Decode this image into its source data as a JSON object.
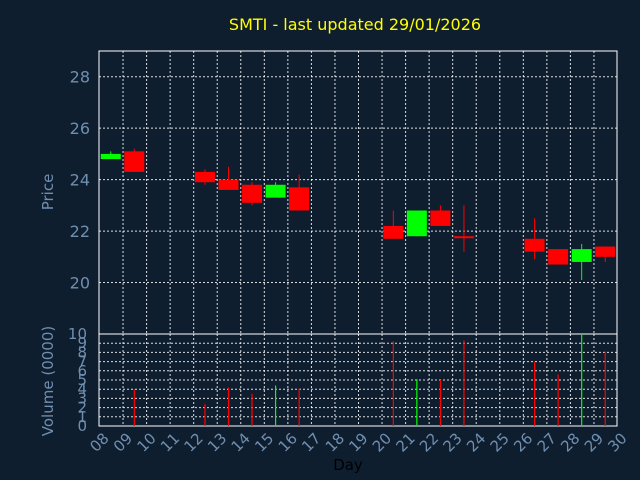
{
  "chart_data": [
    {
      "type": "candlestick",
      "title": "SMTI - last updated 29/01/2026",
      "ylabel": "Price",
      "ylim": [
        18,
        29
      ],
      "yticks": [
        20,
        22,
        24,
        26,
        28
      ],
      "grid": true,
      "colors": {
        "up": "#00ff00",
        "down": "#ff0000",
        "title": "#ffff00",
        "axis_text": "#6f8fb0",
        "background": "#0f1e2f"
      },
      "categories": [
        "08",
        "09",
        "10",
        "11",
        "12",
        "13",
        "14",
        "15",
        "16",
        "17",
        "18",
        "19",
        "20",
        "21",
        "22",
        "23",
        "24",
        "25",
        "26",
        "27",
        "28",
        "29",
        "30"
      ],
      "candles": [
        {
          "day": "08",
          "open": 24.8,
          "high": 25.1,
          "low": 24.8,
          "close": 25.0
        },
        {
          "day": "09",
          "open": 25.1,
          "high": 25.2,
          "low": 24.3,
          "close": 24.3
        },
        {
          "day": "12",
          "open": 24.3,
          "high": 24.4,
          "low": 23.8,
          "close": 23.9
        },
        {
          "day": "13",
          "open": 24.0,
          "high": 24.5,
          "low": 23.6,
          "close": 23.6
        },
        {
          "day": "14",
          "open": 23.8,
          "high": 23.9,
          "low": 23.0,
          "close": 23.1
        },
        {
          "day": "15",
          "open": 23.3,
          "high": 23.9,
          "low": 23.3,
          "close": 23.8
        },
        {
          "day": "16",
          "open": 23.7,
          "high": 24.2,
          "low": 22.8,
          "close": 22.8
        },
        {
          "day": "20",
          "open": 22.2,
          "high": 22.8,
          "low": 21.7,
          "close": 21.7
        },
        {
          "day": "21",
          "open": 21.8,
          "high": 22.8,
          "low": 21.8,
          "close": 22.8
        },
        {
          "day": "22",
          "open": 22.8,
          "high": 23.0,
          "low": 22.2,
          "close": 22.2
        },
        {
          "day": "23",
          "open": 21.8,
          "high": 23.0,
          "low": 21.2,
          "close": 21.75
        },
        {
          "day": "26",
          "open": 21.7,
          "high": 22.5,
          "low": 20.9,
          "close": 21.2
        },
        {
          "day": "27",
          "open": 21.3,
          "high": 21.3,
          "low": 20.7,
          "close": 20.7
        },
        {
          "day": "28",
          "open": 20.8,
          "high": 21.5,
          "low": 20.1,
          "close": 21.3
        },
        {
          "day": "29",
          "open": 21.4,
          "high": 21.4,
          "low": 20.8,
          "close": 21.0
        }
      ]
    },
    {
      "type": "bar",
      "ylabel": "Volume (0000)",
      "xlabel": "Day",
      "ylim": [
        0,
        10
      ],
      "yticks": [
        0,
        1,
        2,
        3,
        4,
        5,
        6,
        7,
        8,
        9,
        10
      ],
      "xticks": [
        "08",
        "09",
        "10",
        "11",
        "12",
        "13",
        "14",
        "15",
        "16",
        "17",
        "18",
        "19",
        "20",
        "21",
        "22",
        "23",
        "24",
        "25",
        "26",
        "27",
        "28",
        "29",
        "30"
      ],
      "bars": [
        {
          "day": "09",
          "value": 4.0,
          "color": "#ff0000"
        },
        {
          "day": "12",
          "value": 2.4,
          "color": "#ff0000"
        },
        {
          "day": "13",
          "value": 4.2,
          "color": "#ff0000"
        },
        {
          "day": "14",
          "value": 3.5,
          "color": "#ff0000"
        },
        {
          "day": "15",
          "value": 4.4,
          "color": "#00ff00"
        },
        {
          "day": "16",
          "value": 4.1,
          "color": "#ff0000"
        },
        {
          "day": "20",
          "value": 9.2,
          "color": "#ff0000"
        },
        {
          "day": "21",
          "value": 5.1,
          "color": "#00ff00"
        },
        {
          "day": "22",
          "value": 5.0,
          "color": "#ff0000"
        },
        {
          "day": "23",
          "value": 9.3,
          "color": "#ff0000"
        },
        {
          "day": "26",
          "value": 7.0,
          "color": "#ff0000"
        },
        {
          "day": "27",
          "value": 5.6,
          "color": "#ff0000"
        },
        {
          "day": "28",
          "value": 10.0,
          "color": "#00ff00"
        },
        {
          "day": "29",
          "value": 8.1,
          "color": "#ff0000"
        }
      ]
    }
  ]
}
